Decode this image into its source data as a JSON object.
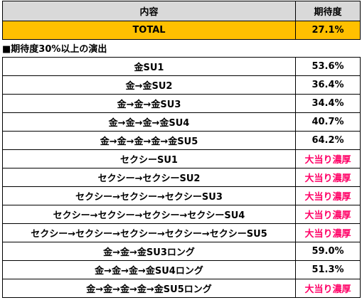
{
  "header": {
    "col_content": "内容",
    "col_expectation": "期待度"
  },
  "total": {
    "label": "TOTAL",
    "value": "27.1%"
  },
  "section": {
    "title": "■期待度30%以上の演出"
  },
  "rows": [
    {
      "label": "金SU1",
      "value": "53.6%",
      "hot": false
    },
    {
      "label": "金→金SU2",
      "value": "36.4%",
      "hot": false
    },
    {
      "label": "金→金→金SU3",
      "value": "34.4%",
      "hot": false
    },
    {
      "label": "金→金→金→金SU4",
      "value": "40.7%",
      "hot": false
    },
    {
      "label": "金→金→金→金→金SU5",
      "value": "64.2%",
      "hot": false
    },
    {
      "label": "セクシーSU1",
      "value": "大当り濃厚",
      "hot": true
    },
    {
      "label": "セクシー→セクシーSU2",
      "value": "大当り濃厚",
      "hot": true
    },
    {
      "label": "セクシー→セクシー→セクシーSU3",
      "value": "大当り濃厚",
      "hot": true
    },
    {
      "label": "セクシー→セクシー→セクシー→セクシーSU4",
      "value": "大当り濃厚",
      "hot": true
    },
    {
      "label": "セクシー→セクシー→セクシー→セクシー→セクシーSU5",
      "value": "大当り濃厚",
      "hot": true
    },
    {
      "label": "金→金→金SU3ロング",
      "value": "59.0%",
      "hot": false
    },
    {
      "label": "金→金→金→金SU4ロング",
      "value": "51.3%",
      "hot": false
    },
    {
      "label": "金→金→金→金→金SU5ロング",
      "value": "大当り濃厚",
      "hot": true
    }
  ],
  "colors": {
    "header_bg": "#d9d9d9",
    "total_bg": "#ffc000",
    "hot_text": "#ff0066"
  }
}
